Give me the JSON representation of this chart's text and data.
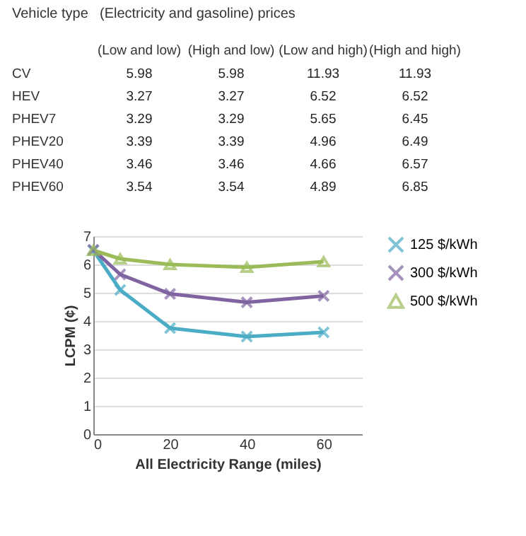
{
  "chart_data": [
    {
      "type": "heatmap",
      "xlabel": "(Electricity and gasoline) prices",
      "ylabel": "Vehicle type",
      "categories": [
        "(Low and low)",
        "(High and low)",
        "(Low and high)",
        "(High and high)"
      ],
      "y_categories": [
        "CV",
        "HEV",
        "PHEV7",
        "PHEV20",
        "PHEV40",
        "PHEV60"
      ],
      "cells": [
        [
          5.98,
          5.98,
          11.93,
          11.93
        ],
        [
          3.27,
          3.27,
          6.52,
          6.52
        ],
        [
          3.29,
          3.29,
          5.65,
          6.45
        ],
        [
          3.39,
          3.39,
          4.96,
          6.49
        ],
        [
          3.46,
          3.46,
          4.66,
          6.57
        ],
        [
          3.54,
          3.54,
          4.89,
          6.85
        ]
      ],
      "data_labels": true
    },
    {
      "type": "line",
      "xlabel": "All Electricity Range (miles)",
      "ylabel": "LCPM (¢)",
      "x": [
        0,
        7,
        20,
        40,
        60
      ],
      "series": [
        {
          "name": "125 $/kWh",
          "color": "#4bacc6",
          "marker": "cross",
          "values": [
            6.5,
            5.1,
            3.75,
            3.45,
            3.6
          ]
        },
        {
          "name": "300 $/kWh",
          "color": "#8064a2",
          "marker": "cross",
          "values": [
            6.52,
            5.65,
            4.96,
            4.66,
            4.89
          ]
        },
        {
          "name": "500 $/kWh",
          "color": "#9bbb59",
          "marker": "triangle",
          "values": [
            6.5,
            6.2,
            6.0,
            5.9,
            6.1
          ]
        }
      ],
      "xlim": [
        0,
        70
      ],
      "xticks": [
        0,
        20,
        40,
        60
      ],
      "ylim": [
        0,
        7
      ],
      "yticks": [
        0,
        1,
        2,
        3,
        4,
        5,
        6,
        7
      ],
      "grid": "y",
      "legend": "right"
    }
  ]
}
